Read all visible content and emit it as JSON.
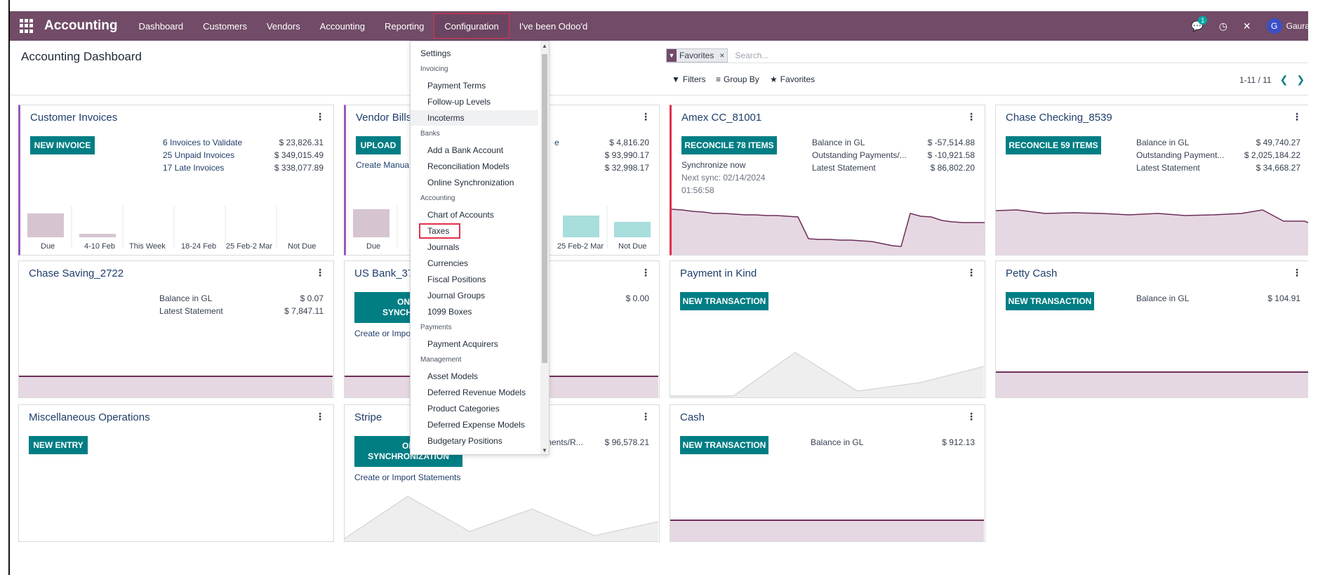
{
  "navbar": {
    "app_name": "Accounting",
    "items": [
      "Dashboard",
      "Customers",
      "Vendors",
      "Accounting",
      "Reporting",
      "Configuration",
      "I've been Odoo'd"
    ],
    "chat_badge": "1",
    "avatar_letter": "G",
    "user_name": "Gaura"
  },
  "page": {
    "title": "Accounting Dashboard",
    "search_facet": "Favorites",
    "search_placeholder": "Search...",
    "filters_label": "Filters",
    "groupby_label": "Group By",
    "favorites_label": "Favorites",
    "pager": "1-11 / 11"
  },
  "cards": {
    "customer_invoices": {
      "title": "Customer Invoices",
      "button": "NEW INVOICE",
      "rows": [
        [
          "6 Invoices to Validate",
          "$ 23,826.31"
        ],
        [
          "25 Unpaid Invoices",
          "$ 349,015.49"
        ],
        [
          "17 Late Invoices",
          "$ 338,077.89"
        ]
      ],
      "bar_labels": [
        "Due",
        "4-10 Feb",
        "This Week",
        "18-24 Feb",
        "25 Feb-2 Mar",
        "Not Due"
      ]
    },
    "vendor_bills": {
      "title": "Vendor Bills",
      "button": "UPLOAD",
      "link": "Create Manua",
      "values": [
        "$ 4,816.20",
        "$ 93,990.17",
        "$ 32,998.17"
      ],
      "row_fragment": "e",
      "bar_labels": [
        "Due",
        "25 Feb-2 Mar",
        "Not Due"
      ]
    },
    "amex": {
      "title": "Amex CC_81001",
      "button": "RECONCILE 78 ITEMS",
      "sync_now": "Synchronize now",
      "next_sync": "Next sync: 02/14/2024",
      "next_time": "01:56:58",
      "rows": [
        [
          "Balance in GL",
          "$ -57,514.88"
        ],
        [
          "Outstanding Payments/...",
          "$ -10,921.58"
        ],
        [
          "Latest Statement",
          "$ 86,802.20"
        ]
      ]
    },
    "chase_checking": {
      "title": "Chase Checking_8539",
      "button": "RECONCILE 59 ITEMS",
      "rows": [
        [
          "Balance in GL",
          "$ 49,740.27"
        ],
        [
          "Outstanding Payment...",
          "$ 2,025,184.22"
        ],
        [
          "Latest Statement",
          "$ 34,668.27"
        ]
      ]
    },
    "chase_saving": {
      "title": "Chase Saving_2722",
      "rows": [
        [
          "Balance in GL",
          "$ 0.07"
        ],
        [
          "Latest Statement",
          "$ 7,847.11"
        ]
      ]
    },
    "us_bank": {
      "title": "US Bank_37",
      "button_line1": "ON",
      "button_line2": "SYNCHRO",
      "link": "Create or Impo",
      "value": "$ 0.00"
    },
    "payment_in_kind": {
      "title": "Payment in Kind",
      "button": "NEW TRANSACTION"
    },
    "petty_cash": {
      "title": "Petty Cash",
      "button": "NEW TRANSACTION",
      "rows": [
        [
          "Balance in GL",
          "$ 104.91"
        ]
      ]
    },
    "misc": {
      "title": "Miscellaneous Operations",
      "button": "NEW ENTRY"
    },
    "stripe": {
      "title": "Stripe",
      "button_line1": "ON",
      "button_line2": "SYNCHRONIZATION",
      "link": "Create or Import Statements",
      "row_fragment": "ments/R...",
      "value": "$ 96,578.21"
    },
    "cash": {
      "title": "Cash",
      "button": "NEW TRANSACTION",
      "rows": [
        [
          "Balance in GL",
          "$ 912.13"
        ]
      ]
    }
  },
  "menu": {
    "settings": "Settings",
    "invoicing_header": "Invoicing",
    "invoicing": [
      "Payment Terms",
      "Follow-up Levels",
      "Incoterms"
    ],
    "banks_header": "Banks",
    "banks": [
      "Add a Bank Account",
      "Reconciliation Models",
      "Online Synchronization"
    ],
    "accounting_header": "Accounting",
    "accounting": [
      "Chart of Accounts",
      "Taxes",
      "Journals",
      "Currencies",
      "Fiscal Positions",
      "Journal Groups",
      "1099 Boxes"
    ],
    "payments_header": "Payments",
    "payments": [
      "Payment Acquirers"
    ],
    "management_header": "Management",
    "management": [
      "Asset Models",
      "Deferred Revenue Models",
      "Product Categories",
      "Deferred Expense Models",
      "Budgetary Positions"
    ]
  },
  "colors": {
    "navbar": "#714b67",
    "button": "#017e84",
    "highlight_box": "#e0314b",
    "graph_line": "#6d2e5b",
    "graph_fill": "#e6d8e2"
  }
}
